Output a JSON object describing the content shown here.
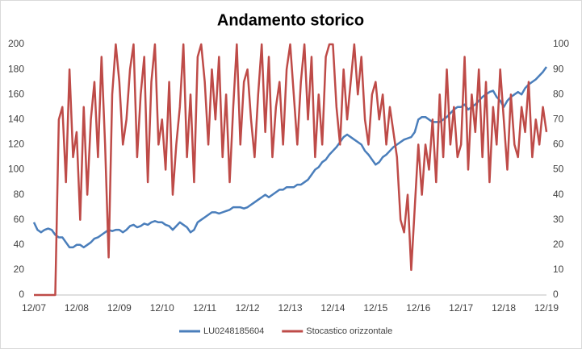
{
  "chart_data": {
    "type": "line",
    "title": "Andamento storico",
    "categories": [
      "12/07",
      null,
      null,
      null,
      null,
      null,
      null,
      null,
      null,
      null,
      null,
      null,
      "12/08",
      null,
      null,
      null,
      null,
      null,
      null,
      null,
      null,
      null,
      null,
      null,
      "12/09",
      null,
      null,
      null,
      null,
      null,
      null,
      null,
      null,
      null,
      null,
      null,
      "12/10",
      null,
      null,
      null,
      null,
      null,
      null,
      null,
      null,
      null,
      null,
      null,
      "12/11",
      null,
      null,
      null,
      null,
      null,
      null,
      null,
      null,
      null,
      null,
      null,
      "12/12",
      null,
      null,
      null,
      null,
      null,
      null,
      null,
      null,
      null,
      null,
      null,
      "12/13",
      null,
      null,
      null,
      null,
      null,
      null,
      null,
      null,
      null,
      null,
      null,
      "12/14",
      null,
      null,
      null,
      null,
      null,
      null,
      null,
      null,
      null,
      null,
      null,
      "12/15",
      null,
      null,
      null,
      null,
      null,
      null,
      null,
      null,
      null,
      null,
      null,
      "12/16",
      null,
      null,
      null,
      null,
      null,
      null,
      null,
      null,
      null,
      null,
      null,
      "12/17",
      null,
      null,
      null,
      null,
      null,
      null,
      null,
      null,
      null,
      null,
      null,
      "12/18",
      null,
      null,
      null,
      null,
      null,
      null,
      null,
      null,
      null,
      null,
      null,
      "12/19"
    ],
    "series": [
      {
        "name": "LU0248185604",
        "color": "#4a7ebb",
        "axis": "y",
        "values": [
          58,
          52,
          50,
          52,
          53,
          52,
          48,
          46,
          46,
          42,
          38,
          38,
          40,
          40,
          38,
          40,
          42,
          45,
          46,
          48,
          50,
          52,
          51,
          52,
          52,
          50,
          52,
          55,
          56,
          54,
          55,
          57,
          56,
          58,
          59,
          58,
          58,
          56,
          55,
          52,
          55,
          58,
          56,
          54,
          50,
          52,
          58,
          60,
          62,
          64,
          66,
          66,
          65,
          66,
          67,
          68,
          70,
          70,
          70,
          69,
          70,
          72,
          74,
          76,
          78,
          80,
          78,
          80,
          82,
          84,
          84,
          86,
          86,
          86,
          88,
          88,
          90,
          92,
          96,
          100,
          102,
          106,
          108,
          112,
          115,
          118,
          122,
          126,
          128,
          126,
          124,
          122,
          120,
          115,
          112,
          108,
          104,
          106,
          110,
          112,
          115,
          118,
          120,
          122,
          124,
          125,
          126,
          130,
          140,
          142,
          142,
          140,
          138,
          138,
          138,
          140,
          142,
          145,
          148,
          150,
          150,
          152,
          148,
          150,
          152,
          155,
          158,
          160,
          162,
          163,
          158,
          155,
          150,
          155,
          158,
          160,
          162,
          160,
          165,
          168,
          170,
          172,
          175,
          178,
          182
        ]
      },
      {
        "name": "Stocastico orizzontale",
        "color": "#be4b48",
        "axis": "y2",
        "values": [
          0,
          0,
          0,
          0,
          0,
          0,
          0,
          70,
          75,
          45,
          90,
          55,
          65,
          30,
          75,
          40,
          70,
          85,
          55,
          95,
          60,
          15,
          80,
          100,
          85,
          60,
          70,
          90,
          100,
          55,
          80,
          95,
          45,
          85,
          100,
          60,
          70,
          50,
          85,
          40,
          60,
          75,
          100,
          55,
          80,
          45,
          95,
          100,
          85,
          60,
          90,
          70,
          95,
          55,
          80,
          45,
          75,
          100,
          60,
          85,
          90,
          70,
          55,
          80,
          100,
          65,
          95,
          55,
          75,
          85,
          60,
          90,
          100,
          80,
          60,
          85,
          100,
          70,
          95,
          55,
          80,
          60,
          95,
          100,
          100,
          75,
          60,
          90,
          70,
          85,
          100,
          80,
          95,
          70,
          60,
          80,
          85,
          70,
          80,
          60,
          75,
          65,
          55,
          30,
          25,
          40,
          10,
          35,
          60,
          40,
          60,
          50,
          70,
          45,
          80,
          55,
          90,
          60,
          75,
          55,
          60,
          95,
          50,
          80,
          65,
          90,
          55,
          85,
          45,
          75,
          60,
          90,
          70,
          50,
          80,
          60,
          55,
          75,
          65,
          85,
          55,
          70,
          60,
          75,
          65
        ]
      }
    ],
    "ylim": [
      0,
      200
    ],
    "yticks": [
      0,
      20,
      40,
      60,
      80,
      100,
      120,
      140,
      160,
      180,
      200
    ],
    "y2lim": [
      0,
      100
    ],
    "y2ticks": [
      0,
      10,
      20,
      30,
      40,
      50,
      60,
      70,
      80,
      90,
      100
    ],
    "grid": false,
    "legend": "bottom"
  }
}
